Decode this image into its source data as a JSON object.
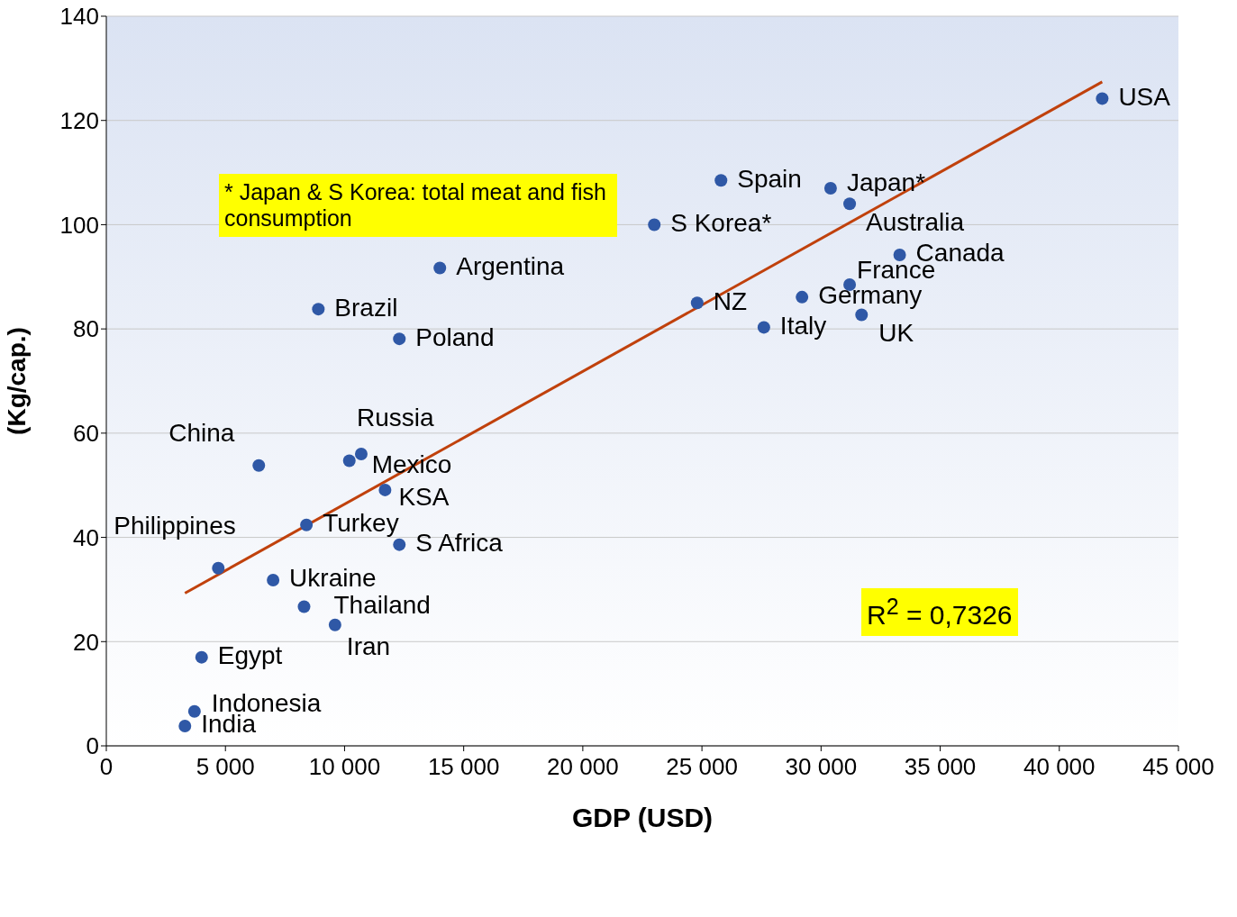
{
  "chart_data": {
    "type": "scatter",
    "xlabel": "GDP (USD)",
    "ylabel": "(Kg/cap.)",
    "annotations": [
      "*  Japan & S Korea: total meat and fish consumption",
      "R$^{2}$ = 0,7326"
    ],
    "xlim": [
      0,
      45000
    ],
    "xticks": [
      0,
      {
        "value": 5000,
        "label": "5 000"
      },
      {
        "value": 10000,
        "label": "10 000"
      },
      {
        "value": 15000,
        "label": "15 000"
      },
      {
        "value": 20000,
        "label": "20 000"
      },
      {
        "value": 25000,
        "label": "25 000"
      },
      {
        "value": 30000,
        "label": "30 000"
      },
      {
        "value": 35000,
        "label": "35 000"
      },
      {
        "value": 40000,
        "label": "40 000"
      },
      {
        "value": 45000,
        "label": "45 000"
      }
    ],
    "ylim": [
      0,
      140
    ],
    "yticks": [
      0,
      20,
      40,
      60,
      80,
      100,
      120,
      140
    ],
    "grid": "y",
    "marker": "circle",
    "series": [
      {
        "color": "#2f58a6",
        "x": [
          41800,
          25800,
          30400,
          31200,
          23000,
          33300,
          14000,
          31200,
          24800,
          29200,
          8900,
          31700,
          27600,
          12300,
          10700,
          10200,
          6400,
          11700,
          8400,
          12300,
          4700,
          7000,
          8300,
          9600,
          4000,
          3700,
          3300
        ],
        "values": [
          124.2,
          108.5,
          107,
          104,
          100,
          94.2,
          91.7,
          88.5,
          85,
          86.1,
          83.8,
          82.7,
          80.3,
          78.1,
          56,
          54.7,
          53.8,
          49.1,
          42.4,
          38.6,
          34.1,
          31.8,
          26.7,
          23.2,
          17,
          6.6,
          3.8
        ],
        "value_labels": [
          "USA",
          "Spain",
          "Japan*",
          "Australia",
          "S Korea*",
          "Canada",
          "Argentina",
          "France",
          "NZ",
          "Germany",
          "Brazil",
          "UK",
          "Italy",
          "Poland",
          "Russia",
          "Mexico",
          "China",
          "KSA",
          "Turkey",
          "S Africa",
          "Philippines",
          "Ukraine",
          "Thailand",
          "Iran",
          "Egypt",
          "Indonesia",
          "India"
        ]
      },
      {
        "type": "line",
        "marker": "none",
        "color": "#c0410c",
        "x": [
          3300,
          41800
        ],
        "values": [
          29.3,
          127.4
        ]
      }
    ]
  }
}
